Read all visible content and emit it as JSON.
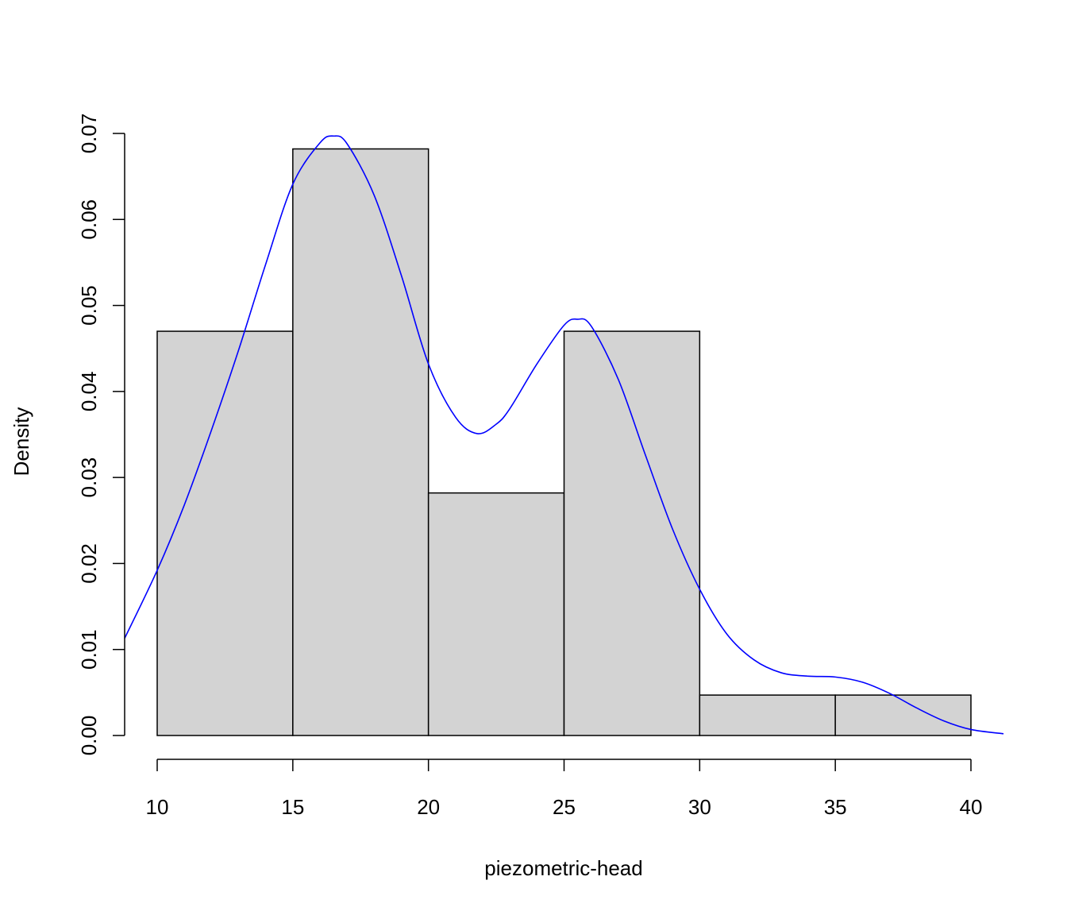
{
  "chart_data": {
    "type": "histogram",
    "title": "",
    "xlabel": "piezometric-head",
    "ylabel": "Density",
    "xlim": [
      8.8,
      41.2
    ],
    "ylim": [
      0,
      0.07
    ],
    "x_ticks": [
      10,
      15,
      20,
      25,
      30,
      35,
      40
    ],
    "x_tick_labels": [
      "10",
      "15",
      "20",
      "25",
      "30",
      "35",
      "40"
    ],
    "y_ticks": [
      0,
      0.01,
      0.02,
      0.03,
      0.04,
      0.05,
      0.06,
      0.07
    ],
    "y_tick_labels": [
      "0.00",
      "0.01",
      "0.02",
      "0.03",
      "0.04",
      "0.05",
      "0.06",
      "0.07"
    ],
    "grid": false,
    "bins": [
      {
        "start": 10,
        "end": 15,
        "density": 0.047
      },
      {
        "start": 15,
        "end": 20,
        "density": 0.0682
      },
      {
        "start": 20,
        "end": 25,
        "density": 0.0282
      },
      {
        "start": 25,
        "end": 30,
        "density": 0.047
      },
      {
        "start": 30,
        "end": 35,
        "density": 0.0047
      },
      {
        "start": 35,
        "end": 40,
        "density": 0.0047
      }
    ],
    "density_curve": {
      "x": [
        8.8,
        10,
        11,
        12,
        13,
        14,
        15,
        16,
        16.5,
        17,
        18,
        19,
        20,
        21,
        21.8,
        22.5,
        23,
        24,
        25,
        25.5,
        26,
        27,
        28,
        29,
        30,
        31,
        32,
        33,
        34,
        35,
        36,
        37,
        38,
        39,
        40,
        41.2
      ],
      "y": [
        0.0113,
        0.0192,
        0.0268,
        0.0355,
        0.0448,
        0.0548,
        0.0641,
        0.0689,
        0.0697,
        0.0688,
        0.0628,
        0.0535,
        0.0432,
        0.037,
        0.0351,
        0.0362,
        0.038,
        0.0432,
        0.0477,
        0.0484,
        0.0476,
        0.0414,
        0.0326,
        0.024,
        0.017,
        0.0118,
        0.0088,
        0.0073,
        0.0069,
        0.0068,
        0.0062,
        0.0049,
        0.0032,
        0.0017,
        0.0007,
        0.0002
      ]
    },
    "colors": {
      "bar_fill": "#d3d3d3",
      "bar_stroke": "#000000",
      "curve": "#0000ff"
    }
  }
}
